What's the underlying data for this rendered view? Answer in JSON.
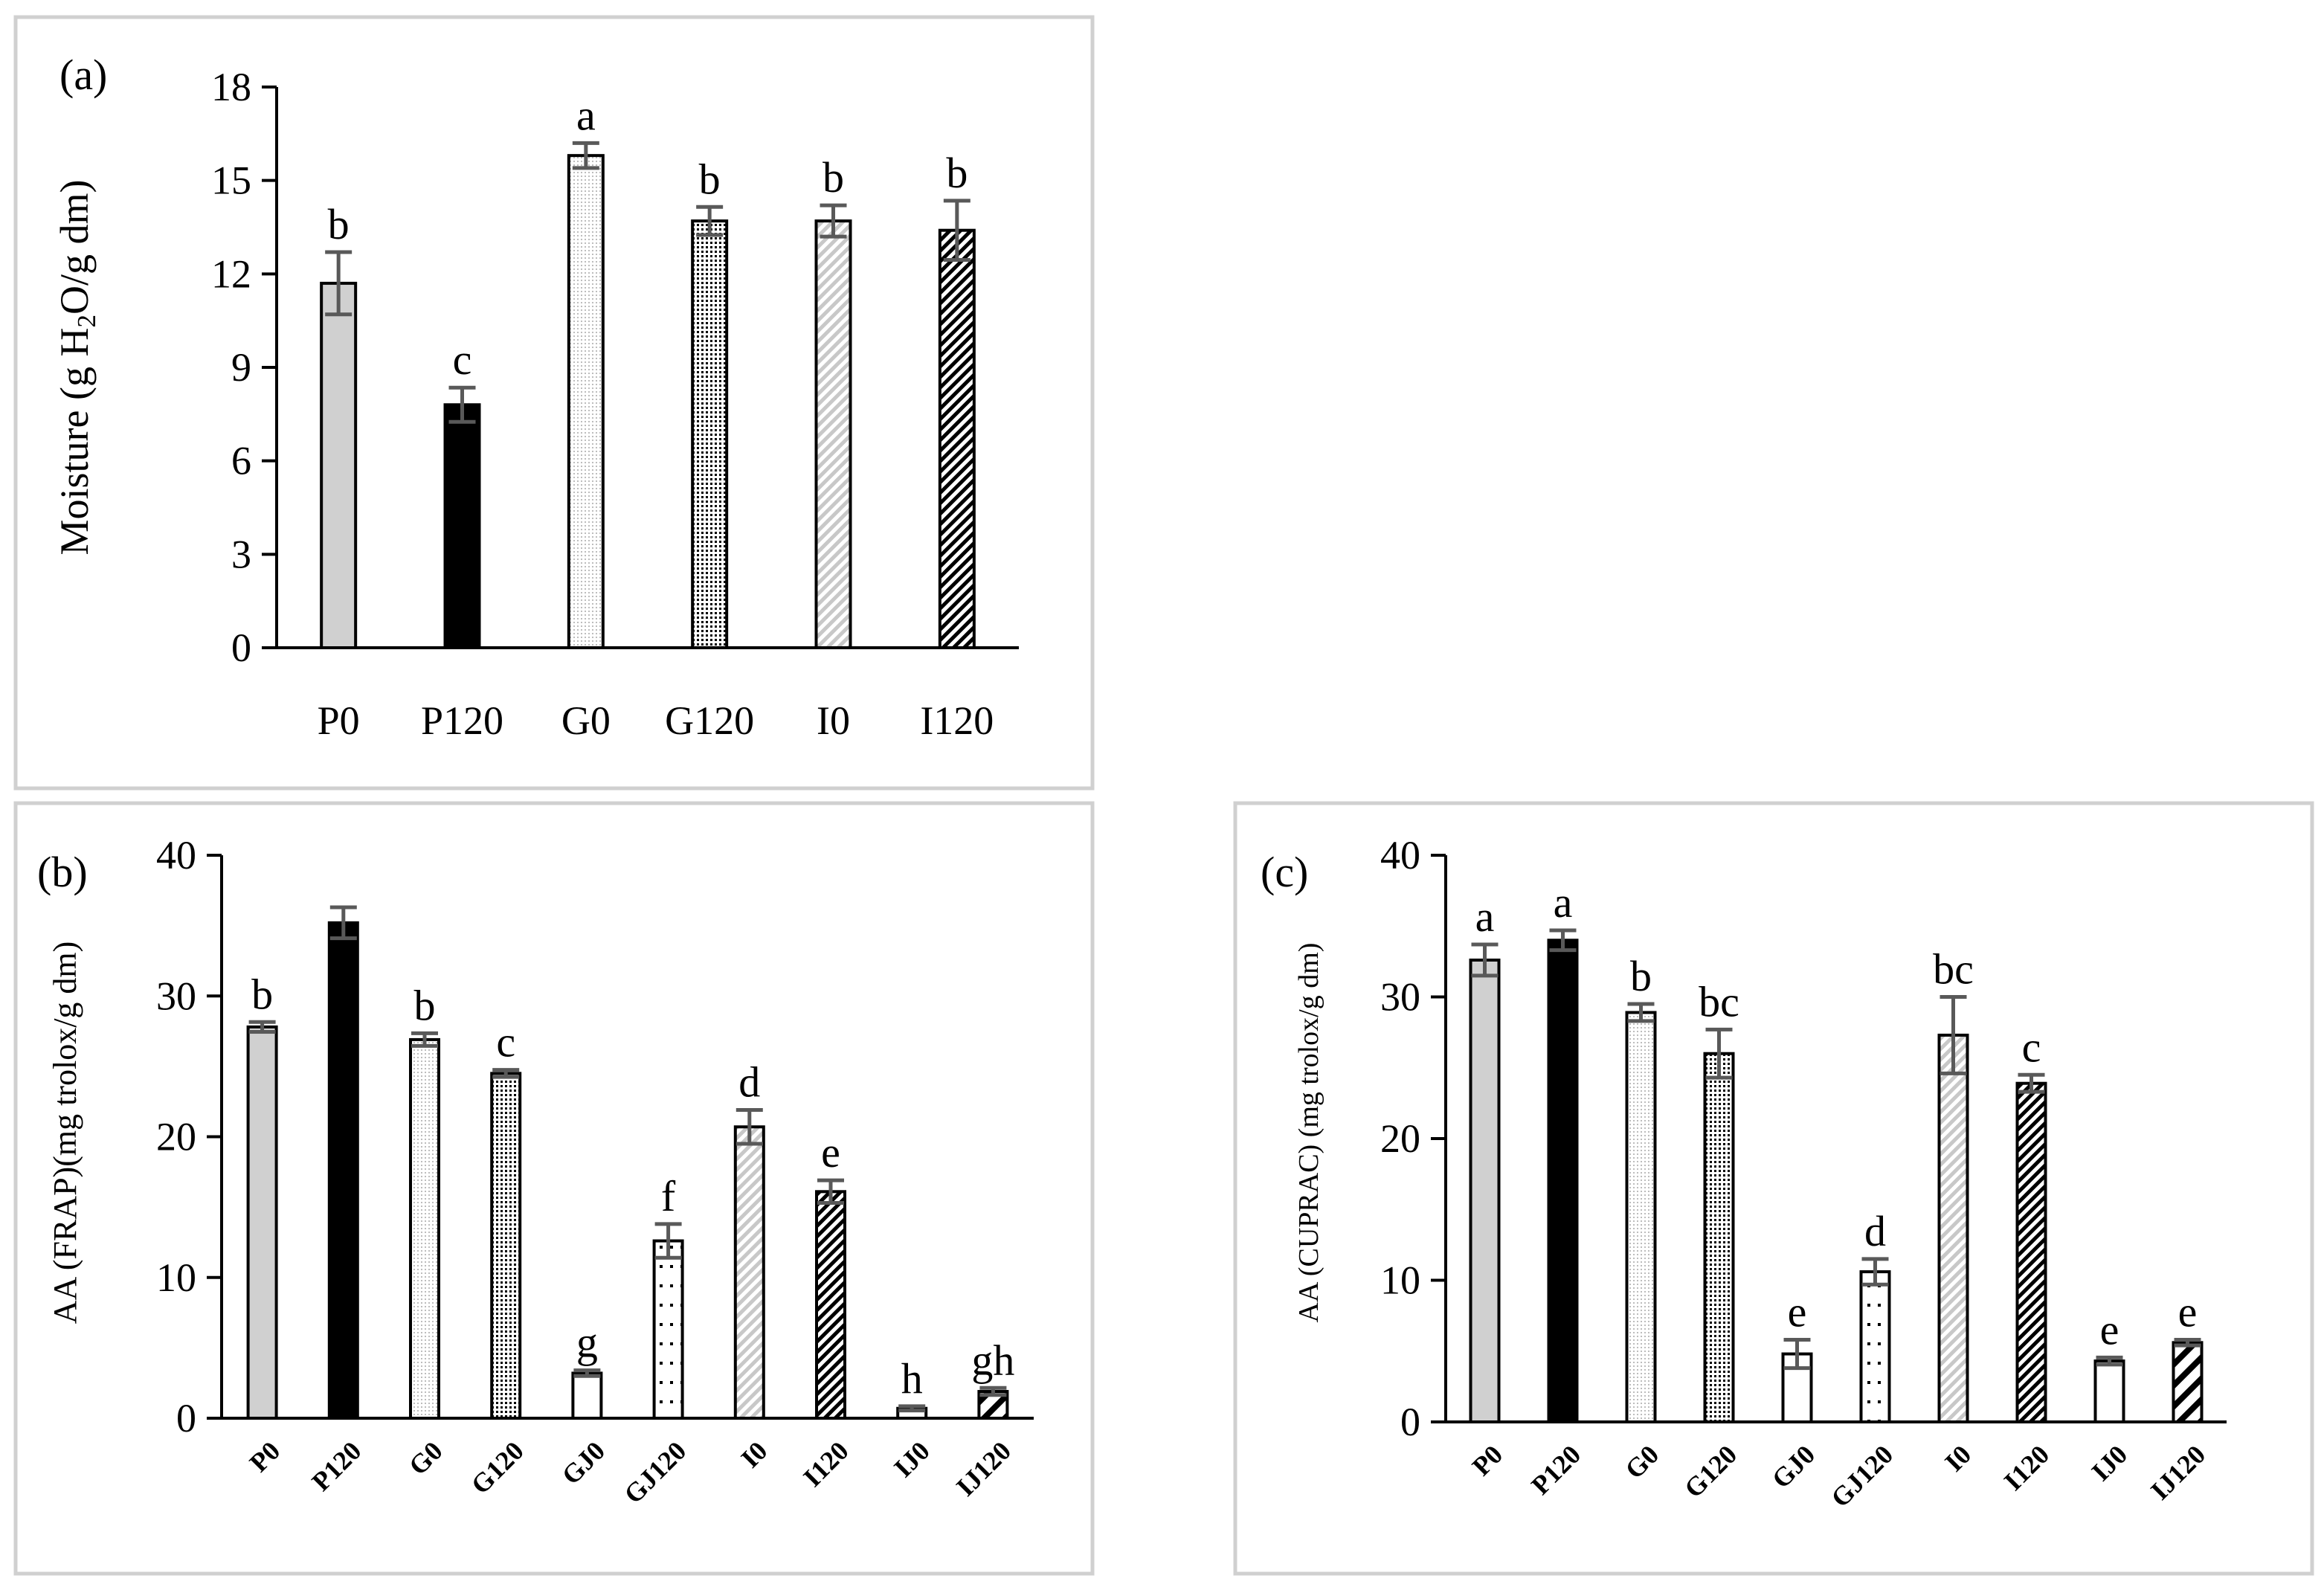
{
  "chart_data": [
    {
      "panel": "(a)",
      "type": "bar",
      "ylabel_main": "Moisture (g H",
      "ylabel_sub": "2",
      "ylabel_tail": "O/g dm)",
      "ylim": [
        0,
        18
      ],
      "yticks": [
        0,
        3,
        6,
        9,
        12,
        15,
        18
      ],
      "categories": [
        "P0",
        "P120",
        "G0",
        "G120",
        "I0",
        "I120"
      ],
      "values": [
        11.7,
        7.8,
        15.8,
        13.7,
        13.7,
        13.4
      ],
      "errors": [
        1.0,
        0.55,
        0.4,
        0.45,
        0.5,
        0.95
      ],
      "letters": [
        "b",
        "c",
        "a",
        "b",
        "b",
        "b"
      ],
      "patterns": [
        "solid-grey",
        "solid-black",
        "fine-dots",
        "dense-dots",
        "grey-diag",
        "black-diag"
      ],
      "tick_rotation": "horizontal"
    },
    {
      "panel": "(b)",
      "type": "bar",
      "ylabel": "AA (FRAP)(mg trolox/g dm)",
      "ylim": [
        0,
        40
      ],
      "yticks": [
        0,
        10,
        20,
        30,
        40
      ],
      "categories": [
        "P0",
        "P120",
        "G0",
        "G120",
        "GJ0",
        "GJ120",
        "I0",
        "I120",
        "IJ0",
        "IJ120"
      ],
      "values": [
        27.8,
        35.2,
        26.9,
        24.5,
        3.2,
        12.6,
        20.7,
        16.1,
        0.7,
        1.9
      ],
      "errors": [
        0.35,
        1.1,
        0.45,
        0.25,
        0.2,
        1.2,
        1.2,
        0.8,
        0.15,
        0.25
      ],
      "letters": [
        "b",
        "",
        "b",
        "c",
        "g",
        "f",
        "d",
        "e",
        "h",
        "gh"
      ],
      "patterns": [
        "solid-grey",
        "solid-black",
        "fine-dots",
        "dense-dots",
        "empty",
        "sparse-dots",
        "grey-diag",
        "black-diag",
        "empty",
        "black-wide-diag"
      ],
      "tick_rotation": "angled"
    },
    {
      "panel": "(c)",
      "type": "bar",
      "ylabel": "AA (CUPRAC) (mg trolox/g dm)",
      "ylim": [
        0,
        40
      ],
      "yticks": [
        0,
        10,
        20,
        30,
        40
      ],
      "categories": [
        "P0",
        "P120",
        "G0",
        "G120",
        "GJ0",
        "GJ120",
        "I0",
        "I120",
        "IJ0",
        "IJ120"
      ],
      "values": [
        32.6,
        34.0,
        28.9,
        26.0,
        4.8,
        10.6,
        27.3,
        23.9,
        4.3,
        5.6
      ],
      "errors": [
        1.1,
        0.7,
        0.6,
        1.7,
        1.0,
        0.9,
        2.7,
        0.6,
        0.25,
        0.2
      ],
      "letters": [
        "a",
        "a",
        "b",
        "bc",
        "e",
        "d",
        "bc",
        "c",
        "e",
        "e"
      ],
      "patterns": [
        "solid-grey",
        "solid-black",
        "fine-dots",
        "dense-dots",
        "empty",
        "sparse-dots",
        "grey-diag",
        "black-diag",
        "empty",
        "black-wide-diag"
      ],
      "tick_rotation": "angled"
    }
  ]
}
